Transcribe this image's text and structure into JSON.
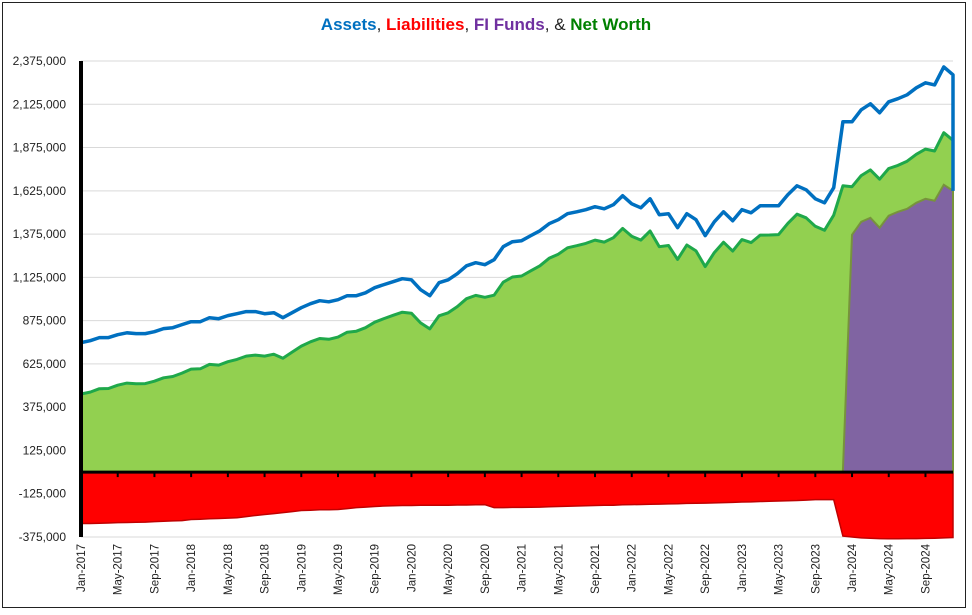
{
  "chart_data": {
    "type": "area",
    "title_parts": {
      "assets": "Assets",
      "sep1": ",",
      "liabilities": "Liabilities",
      "sep2": ",",
      "fi_funds": "FI Funds",
      "sep3": ", &",
      "net_worth": "Net Worth"
    },
    "colors": {
      "assets": "#0070c0",
      "liabilities": "#ff0000",
      "liabilities_edge": "#c00000",
      "fi_funds": "#8064a2",
      "fi_funds_edge": "#77933c",
      "net_worth_fill": "#92d050",
      "net_worth_line": "#1fa84a",
      "title_fi": "#7030a0",
      "title_nw": "#008000"
    },
    "x_start": "Jan-2017",
    "x_end": "Dec-2024",
    "x_interval_months": 1,
    "x_tick_labels": [
      "Jan-2017",
      "May-2017",
      "Sep-2017",
      "Jan-2018",
      "May-2018",
      "Sep-2018",
      "Jan-2019",
      "May-2019",
      "Sep-2019",
      "Jan-2020",
      "May-2020",
      "Sep-2020",
      "Jan-2021",
      "May-2021",
      "Sep-2021",
      "Jan-2022",
      "May-2022",
      "Sep-2022",
      "Jan-2023",
      "May-2023",
      "Sep-2023",
      "Jan-2024",
      "May-2024",
      "Sep-2024"
    ],
    "y_tick_labels": [
      "2,375,000",
      "2,125,000",
      "1,875,000",
      "1,625,000",
      "1,375,000",
      "1,125,000",
      "875,000",
      "625,000",
      "375,000",
      "125,000",
      "-125,000",
      "-375,000"
    ],
    "ylim": [
      -375000,
      2375000
    ],
    "grid": true,
    "units": "thousands",
    "series": [
      {
        "name": "Assets",
        "kind": "line",
        "values": [
          748,
          759,
          777,
          777,
          794,
          805,
          800,
          800,
          811,
          829,
          834,
          852,
          869,
          869,
          892,
          886,
          904,
          915,
          927,
          927,
          915,
          921,
          892,
          921,
          950,
          973,
          990,
          984,
          996,
          1019,
          1019,
          1036,
          1065,
          1083,
          1100,
          1117,
          1111,
          1054,
          1019,
          1094,
          1111,
          1146,
          1192,
          1210,
          1198,
          1227,
          1302,
          1331,
          1337,
          1366,
          1394,
          1435,
          1458,
          1493,
          1504,
          1516,
          1533,
          1521,
          1545,
          1597,
          1550,
          1527,
          1579,
          1487,
          1493,
          1412,
          1493,
          1458,
          1366,
          1446,
          1504,
          1452,
          1516,
          1498,
          1539,
          1539,
          1539,
          1602,
          1654,
          1631,
          1579,
          1556,
          1643,
          2024,
          2024,
          2093,
          2128,
          2076,
          2139,
          2157,
          2180,
          2220,
          2249,
          2237,
          2341,
          2295
        ]
      },
      {
        "name": "Liabilities",
        "kind": "area",
        "values": [
          -297,
          -297,
          -295,
          -294,
          -292,
          -291,
          -290,
          -289,
          -286,
          -284,
          -282,
          -280,
          -274,
          -272,
          -270,
          -268,
          -266,
          -264,
          -257,
          -251,
          -245,
          -240,
          -234,
          -228,
          -222,
          -220,
          -218,
          -217,
          -216,
          -211,
          -205,
          -202,
          -199,
          -196,
          -194,
          -193,
          -193,
          -192,
          -192,
          -191,
          -191,
          -190,
          -190,
          -189,
          -188,
          -205,
          -205,
          -204,
          -204,
          -203,
          -202,
          -200,
          -199,
          -197,
          -196,
          -195,
          -193,
          -192,
          -191,
          -189,
          -188,
          -187,
          -186,
          -185,
          -184,
          -183,
          -181,
          -180,
          -179,
          -178,
          -176,
          -175,
          -173,
          -172,
          -170,
          -169,
          -167,
          -165,
          -164,
          -162,
          -159,
          -159,
          -159,
          -370,
          -375,
          -380,
          -382,
          -384,
          -385,
          -385,
          -384,
          -384,
          -383,
          -382,
          -380,
          -378
        ]
      },
      {
        "name": "Net Worth",
        "kind": "area",
        "values": [
          451,
          462,
          482,
          483,
          502,
          514,
          510,
          511,
          525,
          545,
          552,
          572,
          595,
          597,
          622,
          618,
          638,
          651,
          670,
          676,
          670,
          681,
          658,
          693,
          728,
          753,
          772,
          767,
          780,
          808,
          814,
          834,
          866,
          887,
          906,
          924,
          918,
          862,
          827,
          903,
          920,
          956,
          1002,
          1021,
          1010,
          1022,
          1097,
          1127,
          1133,
          1163,
          1192,
          1235,
          1259,
          1296,
          1308,
          1321,
          1340,
          1329,
          1354,
          1408,
          1362,
          1340,
          1393,
          1302,
          1309,
          1229,
          1312,
          1278,
          1187,
          1268,
          1328,
          1277,
          1343,
          1326,
          1369,
          1370,
          1372,
          1437,
          1490,
          1469,
          1420,
          1397,
          1484,
          1654,
          1649,
          1713,
          1746,
          1692,
          1754,
          1772,
          1796,
          1836,
          1866,
          1855,
          1961,
          1917
        ]
      },
      {
        "name": "FI Funds",
        "kind": "area",
        "values": [
          0,
          0,
          0,
          0,
          0,
          0,
          0,
          0,
          0,
          0,
          0,
          0,
          0,
          0,
          0,
          0,
          0,
          0,
          0,
          0,
          0,
          0,
          0,
          0,
          0,
          0,
          0,
          0,
          0,
          0,
          0,
          0,
          0,
          0,
          0,
          0,
          0,
          0,
          0,
          0,
          0,
          0,
          0,
          0,
          0,
          0,
          0,
          0,
          0,
          0,
          0,
          0,
          0,
          0,
          0,
          0,
          0,
          0,
          0,
          0,
          0,
          0,
          0,
          0,
          0,
          0,
          0,
          0,
          0,
          0,
          0,
          0,
          0,
          0,
          0,
          0,
          0,
          0,
          0,
          0,
          0,
          0,
          0,
          0,
          1371,
          1446,
          1469,
          1412,
          1481,
          1504,
          1521,
          1556,
          1579,
          1568,
          1660,
          1625
        ]
      }
    ]
  }
}
